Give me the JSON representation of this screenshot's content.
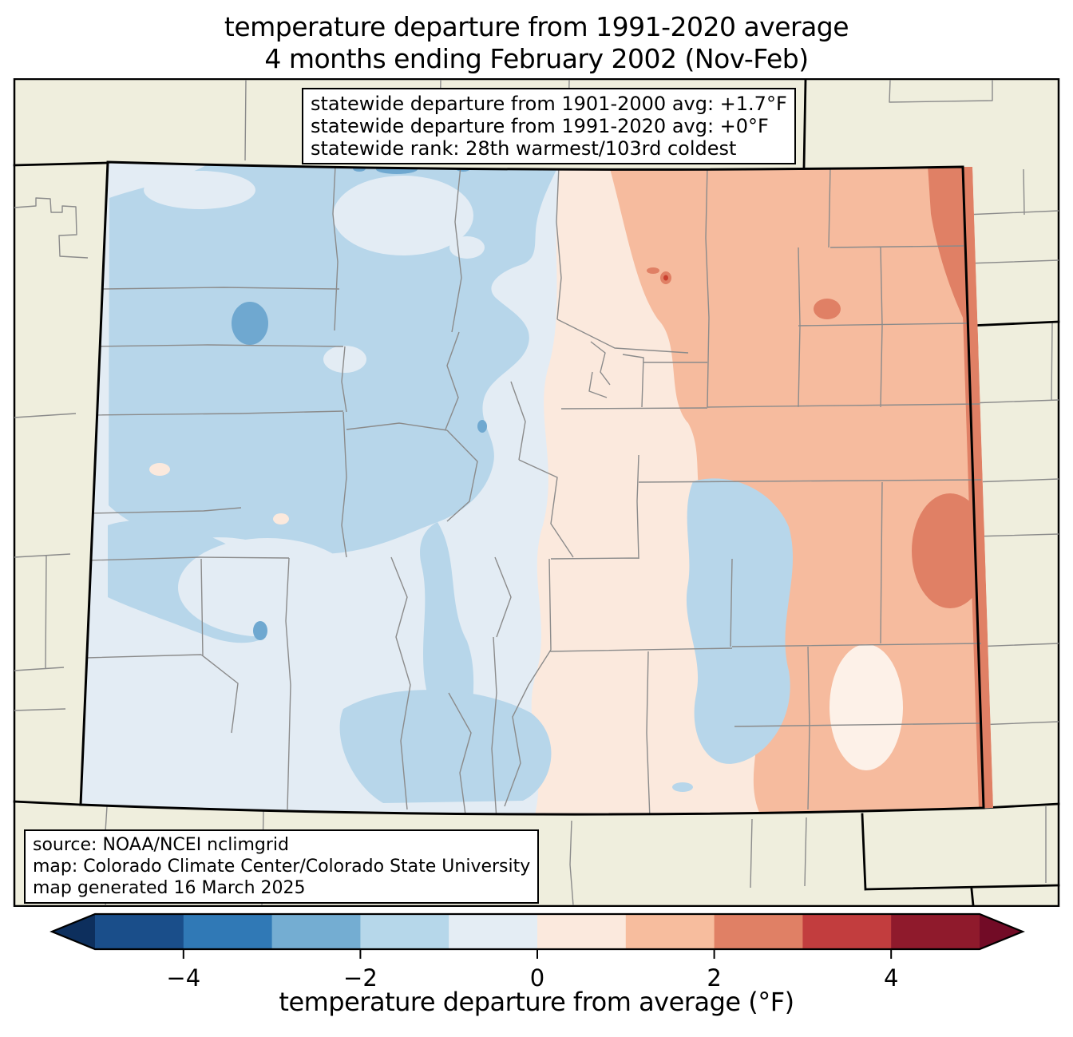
{
  "title": {
    "line1": "temperature departure from 1991-2020 average",
    "line2": "4 months ending February 2002 (Nov-Feb)"
  },
  "stats_box": {
    "line1": "statewide departure from 1901-2000 avg: +1.7°F",
    "line2": "statewide departure from 1991-2020 avg: +0°F",
    "line3": "statewide rank: 28th warmest/103rd coldest"
  },
  "source_box": {
    "line1": "source: NOAA/NCEI nclimgrid",
    "line2": "map: Colorado Climate Center/Colorado State University",
    "line3": "map generated 16 March 2025"
  },
  "colorbar": {
    "label": "temperature departure from average (°F)",
    "ticks": [
      "−4",
      "−2",
      "0",
      "2",
      "4"
    ],
    "tick_values": [
      -4,
      -2,
      0,
      2,
      4
    ],
    "range": [
      -5,
      5
    ],
    "segments": [
      "#1a4e8a",
      "#3079b6",
      "#74add2",
      "#b6d7ea",
      "#e4edf4",
      "#fbe9dd",
      "#f7bd9e",
      "#e08065",
      "#c23d3e",
      "#8f1a2c"
    ],
    "left_arrow": "#0d2f5d",
    "right_arrow": "#720b26"
  },
  "map": {
    "region": "Colorado",
    "legend_meaning": "temperature departure from 1991-2020 average, °F, Nov 2001 - Feb 2002",
    "palette": {
      "beige": "#efeedd",
      "band_m3": "#6fa8d0",
      "band_m2": "#b7d6ea",
      "band_m1": "#e3ecf4",
      "band_p1": "#fbe9dd",
      "band_p1_light": "#fdf1e8",
      "band_p2": "#f6bb9e",
      "band_p3": "#e08065",
      "band_p4": "#c9402f",
      "county_line": "#8b8b8b",
      "state_line": "#000000"
    }
  }
}
